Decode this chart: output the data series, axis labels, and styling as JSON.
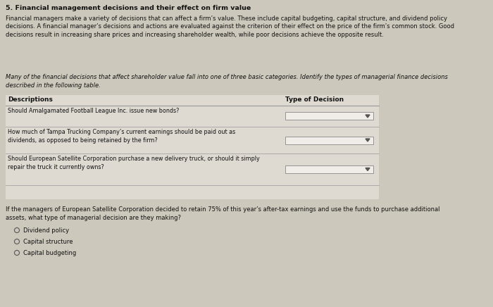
{
  "title": "5. Financial management decisions and their effect on firm value",
  "para1_lines": [
    "Financial managers make a variety of decisions that can affect a firm’s value. These include capital budgeting, capital structure, and dividend policy",
    "decisions. A financial manager’s decisions and actions are evaluated against the criterion of their effect on the price of the firm’s common stock. Good",
    "decisions result in increasing share prices and increasing shareholder wealth, while poor decisions achieve the opposite result."
  ],
  "para2_italic_lines": [
    "Many of the financial decisions that affect shareholder value fall into one of three basic categories. Identify the types of managerial finance decisions",
    "described in the following table."
  ],
  "table_header_desc": "Descriptions",
  "table_header_type": "Type of Decision",
  "table_rows": [
    [
      "Should Amalgamated Football League Inc. issue new bonds?"
    ],
    [
      "How much of Tampa Trucking Company’s current earnings should be paid out as",
      "dividends, as opposed to being retained by the firm?"
    ],
    [
      "Should European Satellite Corporation purchase a new delivery truck, or should it simply",
      "repair the truck it currently owns?"
    ]
  ],
  "question_lines": [
    "If the managers of European Satellite Corporation decided to retain 75% of this year’s after-tax earnings and use the funds to purchase additional",
    "assets, what type of managerial decision are they making?"
  ],
  "choices": [
    "Dividend policy",
    "Capital structure",
    "Capital budgeting"
  ],
  "bg_color": "#cdc8bc",
  "text_color": "#111111",
  "table_bg": "#dedad2",
  "line_color": "#999999",
  "dropdown_bg": "#f0ede8"
}
